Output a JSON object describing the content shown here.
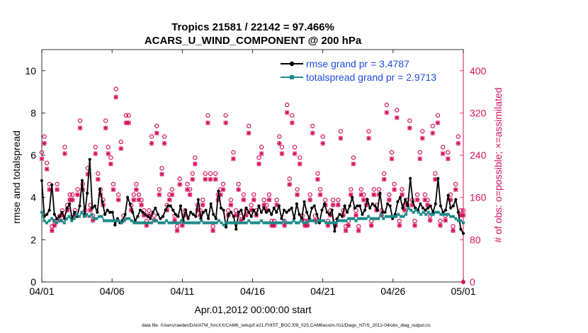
{
  "chart_data": {
    "type": "line",
    "title": "Tropics 21581 / 22142 = 97.466%",
    "subtitle": "ACARS_U_WIND_COMPONENT @ 200 hPa",
    "xlabel": "Apr.01,2012 00:00:00 start",
    "ylabel_left": "rmse and totalspread",
    "ylabel_right": "# of obs: o=possible; ×=assimilated",
    "x_ticks": [
      "04/01",
      "04/06",
      "04/11",
      "04/16",
      "04/21",
      "04/26",
      "05/01"
    ],
    "xlim_days": [
      0,
      30
    ],
    "y_ticks_left": [
      "0",
      "2",
      "4",
      "6",
      "8",
      "10"
    ],
    "ylim_left": [
      0,
      11
    ],
    "y_ticks_right": [
      "0",
      "80",
      "160",
      "240",
      "320",
      "400"
    ],
    "ylim_right": [
      0,
      440
    ],
    "legend_position": "top-right",
    "colors": {
      "rmse": "#000000",
      "spread": "#1a8a8a",
      "obs": "#d6125c",
      "right_axis": "#d6125c"
    },
    "series": [
      {
        "name": "rmse grand pr = 3.4787",
        "key": "rmse",
        "values": [
          4.8,
          3.1,
          3.2,
          3.4,
          4.6,
          3.2,
          3.0,
          3.1,
          3.3,
          3.0,
          3.5,
          3.7,
          3.0,
          3.3,
          3.1,
          3.6,
          4.8,
          3.2,
          4.2,
          5.8,
          3.5,
          3.6,
          3.3,
          4.4,
          3.8,
          3.2,
          3.4,
          3.3,
          3.3,
          2.7,
          3.0,
          2.8,
          2.9,
          3.2,
          4.0,
          3.7,
          3.3,
          2.9,
          3.1,
          3.4,
          3.3,
          3.2,
          3.1,
          3.0,
          3.3,
          3.5,
          3.2,
          3.0,
          3.1,
          3.4,
          3.6,
          3.6,
          3.4,
          3.2,
          3.1,
          3.6,
          2.9,
          3.4,
          3.0,
          3.3,
          3.2,
          3.1,
          3.9,
          3.0,
          3.3,
          3.4,
          3.0,
          3.7,
          3.2,
          3.0,
          4.3,
          3.5,
          3.4,
          2.6,
          3.2,
          3.3,
          3.1,
          2.5,
          3.3,
          3.4,
          3.0,
          3.5,
          3.3,
          3.1,
          3.4,
          3.2,
          3.6,
          3.3,
          3.5,
          3.3,
          3.4,
          3.2,
          3.5,
          3.3,
          3.6,
          3.0,
          3.4,
          3.3,
          3.4,
          3.5,
          3.0,
          3.7,
          3.2,
          3.0,
          3.8,
          3.3,
          3.0,
          3.5,
          3.6,
          3.2,
          2.8,
          3.4,
          3.7,
          3.3,
          3.2,
          3.4,
          2.4,
          3.0,
          3.2,
          3.1,
          3.6,
          3.3,
          3.6,
          4.0,
          3.5,
          3.6,
          3.6,
          3.2,
          3.4,
          3.9,
          3.5,
          3.7,
          3.6,
          3.4,
          4.2,
          3.3,
          3.3,
          3.7,
          3.6,
          3.0,
          3.2,
          3.8,
          4.0,
          3.5,
          3.9,
          3.6,
          4.9,
          3.8,
          3.5,
          3.4,
          3.7,
          3.5,
          3.4,
          3.5,
          3.6,
          3.3,
          3.7,
          4.9,
          3.6,
          3.3,
          3.4,
          4.1,
          3.5,
          3.6,
          3.9,
          3.3,
          2.5,
          2.3
        ]
      },
      {
        "name": "totalspread grand pr = 2.9713",
        "key": "spread",
        "values": [
          3.3,
          2.9,
          2.8,
          2.9,
          3.0,
          2.9,
          2.8,
          2.9,
          2.9,
          2.8,
          3.0,
          3.1,
          2.9,
          3.0,
          3.2,
          3.1,
          3.3,
          3.1,
          3.2,
          3.1,
          3.2,
          3.0,
          3.0,
          3.1,
          3.1,
          2.9,
          2.9,
          2.9,
          2.9,
          2.9,
          2.9,
          2.9,
          2.8,
          2.9,
          3.0,
          3.0,
          2.9,
          2.8,
          2.8,
          2.8,
          2.8,
          2.8,
          2.8,
          2.8,
          2.8,
          2.9,
          2.9,
          2.8,
          2.8,
          2.8,
          2.9,
          2.8,
          2.8,
          2.8,
          2.8,
          2.8,
          2.9,
          2.8,
          2.8,
          2.8,
          2.8,
          2.8,
          2.8,
          2.8,
          2.9,
          2.8,
          2.8,
          2.8,
          2.8,
          2.8,
          2.8,
          2.9,
          2.8,
          2.7,
          2.8,
          2.8,
          2.8,
          2.8,
          2.8,
          2.8,
          2.8,
          2.8,
          2.8,
          2.9,
          2.8,
          2.8,
          2.8,
          2.8,
          2.9,
          2.8,
          2.8,
          2.8,
          2.8,
          2.8,
          2.8,
          2.8,
          2.8,
          2.9,
          2.8,
          2.8,
          2.8,
          2.9,
          2.8,
          2.8,
          2.9,
          2.8,
          2.8,
          2.9,
          2.9,
          2.9,
          2.8,
          2.9,
          2.9,
          2.9,
          2.8,
          2.8,
          2.8,
          2.8,
          2.8,
          2.9,
          2.9,
          2.9,
          2.9,
          3.0,
          3.0,
          3.0,
          2.9,
          3.0,
          3.0,
          3.0,
          3.0,
          3.1,
          3.0,
          3.0,
          3.0,
          3.0,
          3.2,
          3.0,
          3.1,
          3.1,
          3.1,
          3.1,
          3.1,
          3.2,
          3.1,
          3.1,
          3.2,
          3.5,
          3.4,
          3.3,
          3.4,
          3.3,
          3.2,
          3.3,
          3.2,
          3.3,
          3.2,
          3.2,
          3.3,
          3.3,
          3.2,
          3.2,
          3.2,
          3.2,
          3.1,
          3.1,
          3.0,
          2.9,
          2.9,
          2.8
        ]
      }
    ],
    "obs_possible": [
      240,
      270,
      220,
      180,
      100,
      110,
      180,
      120,
      130,
      250,
      140,
      160,
      160,
      130,
      170,
      300,
      180,
      130,
      210,
      140,
      120,
      250,
      200,
      170,
      150,
      300,
      250,
      230,
      180,
      360,
      160,
      260,
      120,
      310,
      310,
      140,
      160,
      180,
      160,
      150,
      130,
      110,
      130,
      270,
      120,
      290,
      170,
      210,
      270,
      140,
      160,
      170,
      120,
      100,
      190,
      110,
      130,
      180,
      170,
      200,
      230,
      140,
      130,
      150,
      200,
      310,
      200,
      100,
      200,
      160,
      170,
      180,
      310,
      130,
      150,
      240,
      130,
      180,
      120,
      160,
      130,
      290,
      140,
      160,
      130,
      230,
      250,
      150,
      140,
      160,
      110,
      110,
      150,
      270,
      250,
      110,
      330,
      190,
      310,
      250,
      170,
      230,
      120,
      110,
      110,
      160,
      290,
      120,
      200,
      170,
      270,
      150,
      110,
      130,
      150,
      110,
      150,
      280,
      130,
      100,
      110,
      170,
      230,
      130,
      100,
      170,
      160,
      150,
      280,
      110,
      170,
      140,
      170,
      130,
      200,
      330,
      160,
      240,
      180,
      320,
      110,
      170,
      140,
      150,
      300,
      150,
      110,
      160,
      240,
      280,
      160,
      150,
      120,
      290,
      200,
      310,
      110,
      250,
      120,
      240,
      160,
      100,
      180,
      270,
      130,
      130
    ]
  },
  "footer": {
    "datafile": "data file: /Users/raeder/DAI/ATM_forcXX/CAM6_setup/f.e21.FHIST_BGC.f09_025.CAM6assim.011/Diags_NTrS_2012-04/obs_diag_output.nc"
  }
}
